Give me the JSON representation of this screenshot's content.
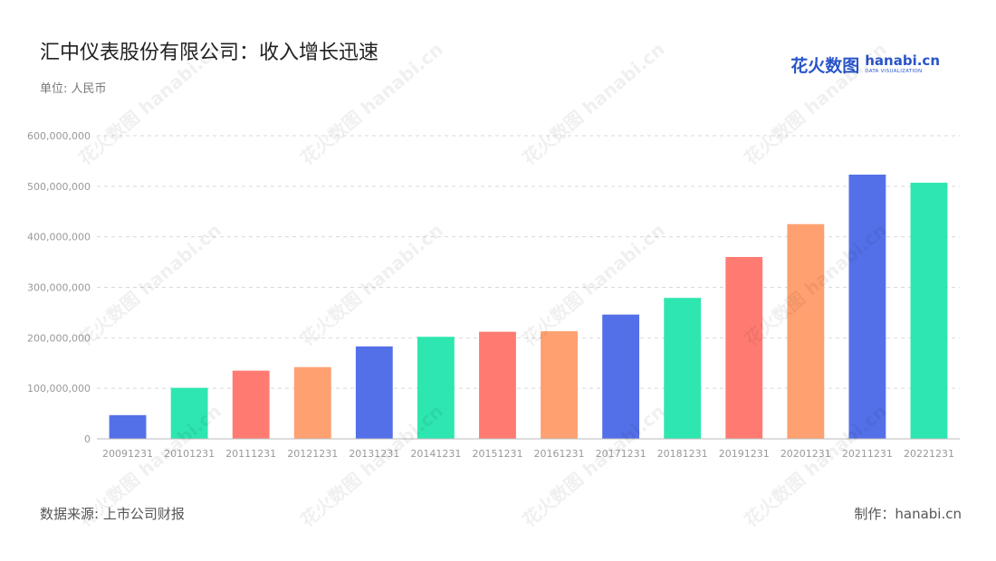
{
  "title": "汇中仪表股份有限公司：收入增长迅速",
  "unit_label": "单位: 人民币",
  "brand": {
    "cn": "花火数图",
    "en": "hanabi.cn",
    "tagline": "DATA VISUALIZATION"
  },
  "watermark_text": "花火数图 hanabi.cn",
  "footer": {
    "source": "数据来源: 上市公司财报",
    "credit": "制作：hanabi.cn"
  },
  "colors": {
    "palette": [
      "#5470e8",
      "#2ee6b0",
      "#ff7b72",
      "#ffa070"
    ],
    "grid": "#d9d9d9",
    "axis_text": "#999999",
    "brand": "#2a55c9"
  },
  "chart_data": {
    "type": "bar",
    "title": "汇中仪表股份有限公司：收入增长迅速",
    "categories": [
      "20091231",
      "20101231",
      "20111231",
      "20121231",
      "20131231",
      "20141231",
      "20151231",
      "20161231",
      "20171231",
      "20181231",
      "20191231",
      "20201231",
      "20211231",
      "20221231"
    ],
    "values": [
      47000000,
      101000000,
      135000000,
      142000000,
      183000000,
      202000000,
      212000000,
      213000000,
      246000000,
      279000000,
      360000000,
      425000000,
      523000000,
      507000000
    ],
    "bar_colors": [
      "#5470e8",
      "#2ee6b0",
      "#ff7b72",
      "#ffa070",
      "#5470e8",
      "#2ee6b0",
      "#ff7b72",
      "#ffa070",
      "#5470e8",
      "#2ee6b0",
      "#ff7b72",
      "#ffa070",
      "#5470e8",
      "#2ee6b0"
    ],
    "ylim": [
      0,
      600000000
    ],
    "yticks": [
      0,
      100000000,
      200000000,
      300000000,
      400000000,
      500000000,
      600000000
    ],
    "ytick_labels": [
      "0",
      "100,000,000",
      "200,000,000",
      "300,000,000",
      "400,000,000",
      "500,000,000",
      "600,000,000"
    ],
    "grid": true,
    "legend": "none"
  }
}
